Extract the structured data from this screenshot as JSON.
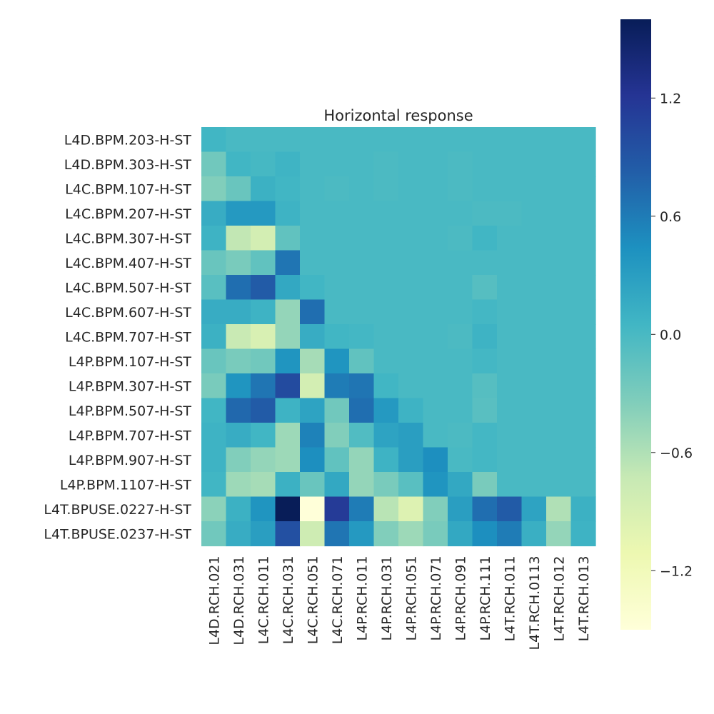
{
  "chart_data": {
    "type": "heatmap",
    "title": "Horizontal response",
    "xlabel": "",
    "ylabel": "",
    "colormap": "YlGnBu",
    "vmin": -1.5,
    "vmax": 1.6,
    "colorbar_ticks": [
      1.2,
      0.6,
      0.0,
      -0.6,
      -1.2
    ],
    "colorbar_tick_labels": [
      "1.2",
      "0.6",
      "0.0",
      "−0.6",
      "−1.2"
    ],
    "x_labels": [
      "L4D.RCH.021",
      "L4D.RCH.031",
      "L4C.RCH.011",
      "L4C.RCH.031",
      "L4C.RCH.051",
      "L4C.RCH.071",
      "L4P.RCH.011",
      "L4P.RCH.031",
      "L4P.RCH.051",
      "L4P.RCH.071",
      "L4P.RCH.091",
      "L4P.RCH.111",
      "L4T.RCH.011",
      "L4T.RCH.0113",
      "L4T.RCH.012",
      "L4T.RCH.013"
    ],
    "y_labels": [
      "L4D.BPM.203-H-ST",
      "L4D.BPM.303-H-ST",
      "L4C.BPM.107-H-ST",
      "L4C.BPM.207-H-ST",
      "L4C.BPM.307-H-ST",
      "L4C.BPM.407-H-ST",
      "L4C.BPM.507-H-ST",
      "L4C.BPM.607-H-ST",
      "L4C.BPM.707-H-ST",
      "L4P.BPM.107-H-ST",
      "L4P.BPM.307-H-ST",
      "L4P.BPM.507-H-ST",
      "L4P.BPM.707-H-ST",
      "L4P.BPM.907-H-ST",
      "L4P.BPM.1107-H-ST",
      "L4T.BPUSE.0227-H-ST",
      "L4T.BPUSE.0237-H-ST"
    ],
    "values": [
      [
        0.05,
        0.0,
        0.0,
        0.0,
        0.0,
        0.0,
        0.0,
        0.0,
        0.0,
        0.0,
        0.0,
        0.0,
        0.0,
        0.0,
        0.0,
        0.0
      ],
      [
        -0.25,
        0.05,
        0.02,
        0.07,
        0.0,
        0.0,
        0.0,
        -0.02,
        0.0,
        0.0,
        -0.02,
        0.0,
        0.0,
        0.0,
        0.0,
        0.0
      ],
      [
        -0.35,
        -0.2,
        0.1,
        0.05,
        0.0,
        -0.02,
        0.0,
        -0.02,
        0.0,
        0.0,
        -0.02,
        0.0,
        0.0,
        0.0,
        0.0,
        0.0
      ],
      [
        0.15,
        0.35,
        0.35,
        0.08,
        0.0,
        0.0,
        0.0,
        0.0,
        0.0,
        0.0,
        0.0,
        -0.02,
        -0.02,
        0.0,
        0.0,
        0.0
      ],
      [
        0.08,
        -0.7,
        -0.85,
        -0.15,
        0.0,
        0.0,
        0.0,
        0.0,
        0.0,
        0.0,
        -0.02,
        0.05,
        0.0,
        0.0,
        0.0,
        0.0
      ],
      [
        -0.2,
        -0.3,
        -0.15,
        0.65,
        0.0,
        0.0,
        0.0,
        0.0,
        0.0,
        0.0,
        0.0,
        0.0,
        0.0,
        0.0,
        0.0,
        0.0
      ],
      [
        -0.1,
        0.7,
        0.85,
        0.2,
        0.05,
        0.0,
        0.0,
        0.0,
        0.0,
        0.0,
        0.0,
        -0.08,
        0.0,
        0.0,
        0.0,
        0.0
      ],
      [
        0.15,
        0.15,
        0.08,
        -0.45,
        0.7,
        0.0,
        0.0,
        0.0,
        0.0,
        0.0,
        0.0,
        0.03,
        0.0,
        0.0,
        0.0,
        0.0
      ],
      [
        0.1,
        -0.75,
        -0.9,
        -0.45,
        0.15,
        0.05,
        0.03,
        0.0,
        0.0,
        0.0,
        -0.02,
        0.08,
        0.0,
        0.0,
        0.0,
        0.0
      ],
      [
        -0.2,
        -0.3,
        -0.25,
        0.4,
        -0.55,
        0.4,
        -0.15,
        0.0,
        0.0,
        0.0,
        0.0,
        0.03,
        0.0,
        0.0,
        0.0,
        0.0
      ],
      [
        -0.3,
        0.4,
        0.65,
        1.0,
        -0.85,
        0.6,
        0.65,
        0.05,
        0.0,
        0.0,
        0.0,
        -0.08,
        0.0,
        0.0,
        0.0,
        0.0
      ],
      [
        0.05,
        0.75,
        0.85,
        0.08,
        0.25,
        -0.25,
        0.7,
        0.35,
        0.08,
        0.0,
        0.0,
        -0.1,
        0.0,
        0.0,
        0.0,
        0.0
      ],
      [
        0.08,
        0.15,
        0.05,
        -0.5,
        0.55,
        -0.35,
        -0.05,
        0.25,
        0.3,
        0.0,
        -0.02,
        0.03,
        0.0,
        0.0,
        0.0,
        0.0
      ],
      [
        0.08,
        -0.35,
        -0.45,
        -0.5,
        0.45,
        -0.15,
        -0.45,
        0.08,
        0.3,
        0.45,
        0.0,
        0.03,
        0.0,
        0.0,
        0.0,
        0.0
      ],
      [
        0.05,
        -0.5,
        -0.55,
        0.1,
        -0.2,
        0.2,
        -0.45,
        -0.3,
        -0.1,
        0.4,
        0.2,
        -0.3,
        0.0,
        0.0,
        0.0,
        0.0
      ],
      [
        -0.4,
        0.1,
        0.4,
        1.6,
        -1.5,
        1.15,
        0.6,
        -0.65,
        -0.95,
        -0.35,
        0.3,
        0.7,
        0.85,
        0.25,
        -0.6,
        0.1
      ],
      [
        -0.25,
        0.15,
        0.3,
        0.95,
        -0.8,
        0.65,
        0.35,
        -0.35,
        -0.5,
        -0.3,
        0.2,
        0.45,
        0.6,
        0.12,
        -0.45,
        0.08
      ]
    ]
  }
}
